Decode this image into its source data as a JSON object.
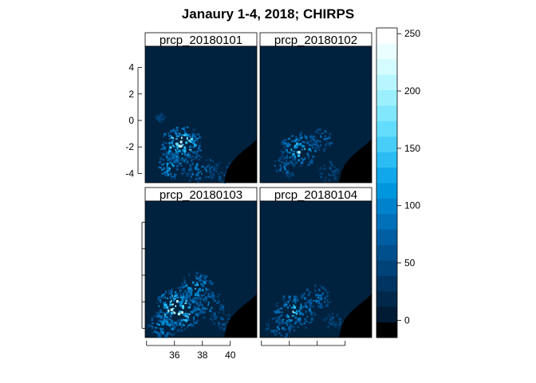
{
  "chart_data": {
    "type": "heatmap",
    "title": "Janaury 1-4, 2018; CHIRPS",
    "panels": [
      {
        "label": "prcp_20180101"
      },
      {
        "label": "prcp_20180102"
      },
      {
        "label": "prcp_20180103"
      },
      {
        "label": "prcp_20180104"
      }
    ],
    "x_ticks": [
      "36",
      "38",
      "40"
    ],
    "x_tick_values": [
      36,
      38,
      40
    ],
    "y_ticks": [
      "4",
      "2",
      "0",
      "-2",
      "-4"
    ],
    "y_tick_values": [
      4,
      2,
      0,
      -2,
      -4
    ],
    "xlim": [
      33.9,
      41.9
    ],
    "ylim": [
      -4.7,
      5.6
    ],
    "colorbar": {
      "ticks": [
        "250",
        "200",
        "150",
        "100",
        "50",
        "0"
      ],
      "tick_values": [
        250,
        200,
        150,
        100,
        50,
        0
      ],
      "range": [
        -15,
        255
      ],
      "colors": [
        "#000000",
        "#001b33",
        "#00284a",
        "#003561",
        "#004378",
        "#00508e",
        "#005ea3",
        "#0070b8",
        "#0083cc",
        "#0096dd",
        "#10a8ea",
        "#2bbcf3",
        "#47cdf8",
        "#64dcfb",
        "#80e7fd",
        "#9cf0fe",
        "#b8f6ff",
        "#d4fbff",
        "#eafdff",
        "#ffffff"
      ]
    },
    "grid": false,
    "legend": "colorbar-right"
  }
}
